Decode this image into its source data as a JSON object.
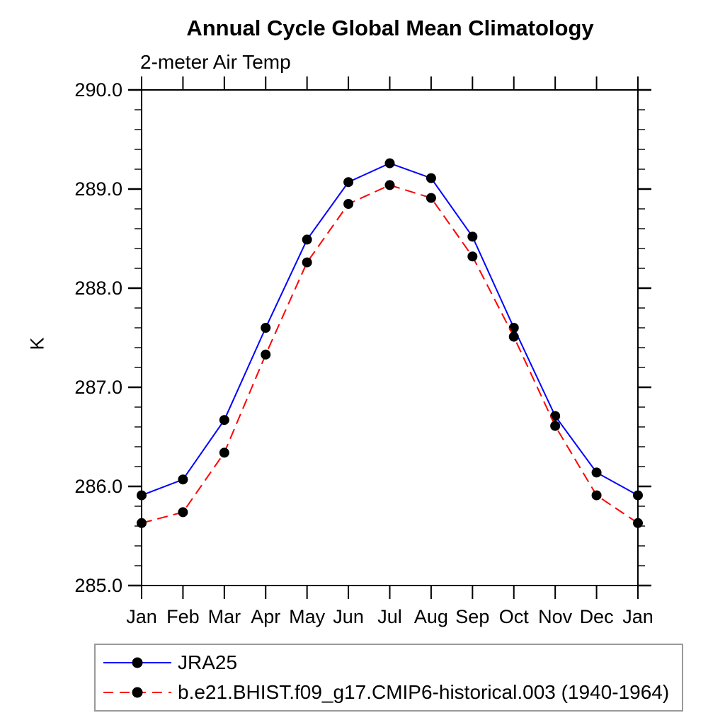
{
  "title": "Annual Cycle Global Mean Climatology",
  "subtitle": "2-meter Air Temp",
  "colors": {
    "series1_line": "#0000ff",
    "series2_line": "#ff0000",
    "marker": "#000000",
    "axis": "#000000",
    "text": "#000000",
    "legend_border": "#9a9a9a"
  },
  "chart_data": {
    "type": "line",
    "title": "Annual Cycle Global Mean Climatology",
    "subtitle": "2-meter Air Temp",
    "ylabel": "K",
    "xlabel": "",
    "categories": [
      "Jan",
      "Feb",
      "Mar",
      "Apr",
      "May",
      "Jun",
      "Jul",
      "Aug",
      "Sep",
      "Oct",
      "Nov",
      "Dec",
      "Jan"
    ],
    "ylim": [
      285.0,
      290.0
    ],
    "ytick_major_step": 1.0,
    "ytick_minor_step": 0.2,
    "ytick_labels": [
      "285.0",
      "286.0",
      "287.0",
      "288.0",
      "289.0",
      "290.0"
    ],
    "grid": "off",
    "legend_position": "bottom-left",
    "series": [
      {
        "name": "JRA25",
        "line_style": "solid",
        "color": "#0000ff",
        "marker": "filled-circle",
        "values": [
          285.91,
          286.07,
          286.67,
          287.6,
          288.49,
          289.07,
          289.26,
          289.11,
          288.52,
          287.6,
          286.71,
          286.14,
          285.91
        ]
      },
      {
        "name": "b.e21.BHIST.f09_g17.CMIP6-historical.003 (1940-1964)",
        "line_style": "dashed",
        "color": "#ff0000",
        "marker": "filled-circle",
        "values": [
          285.63,
          285.74,
          286.34,
          287.33,
          288.26,
          288.85,
          289.04,
          288.91,
          288.32,
          287.51,
          286.61,
          285.91,
          285.63
        ]
      }
    ]
  }
}
